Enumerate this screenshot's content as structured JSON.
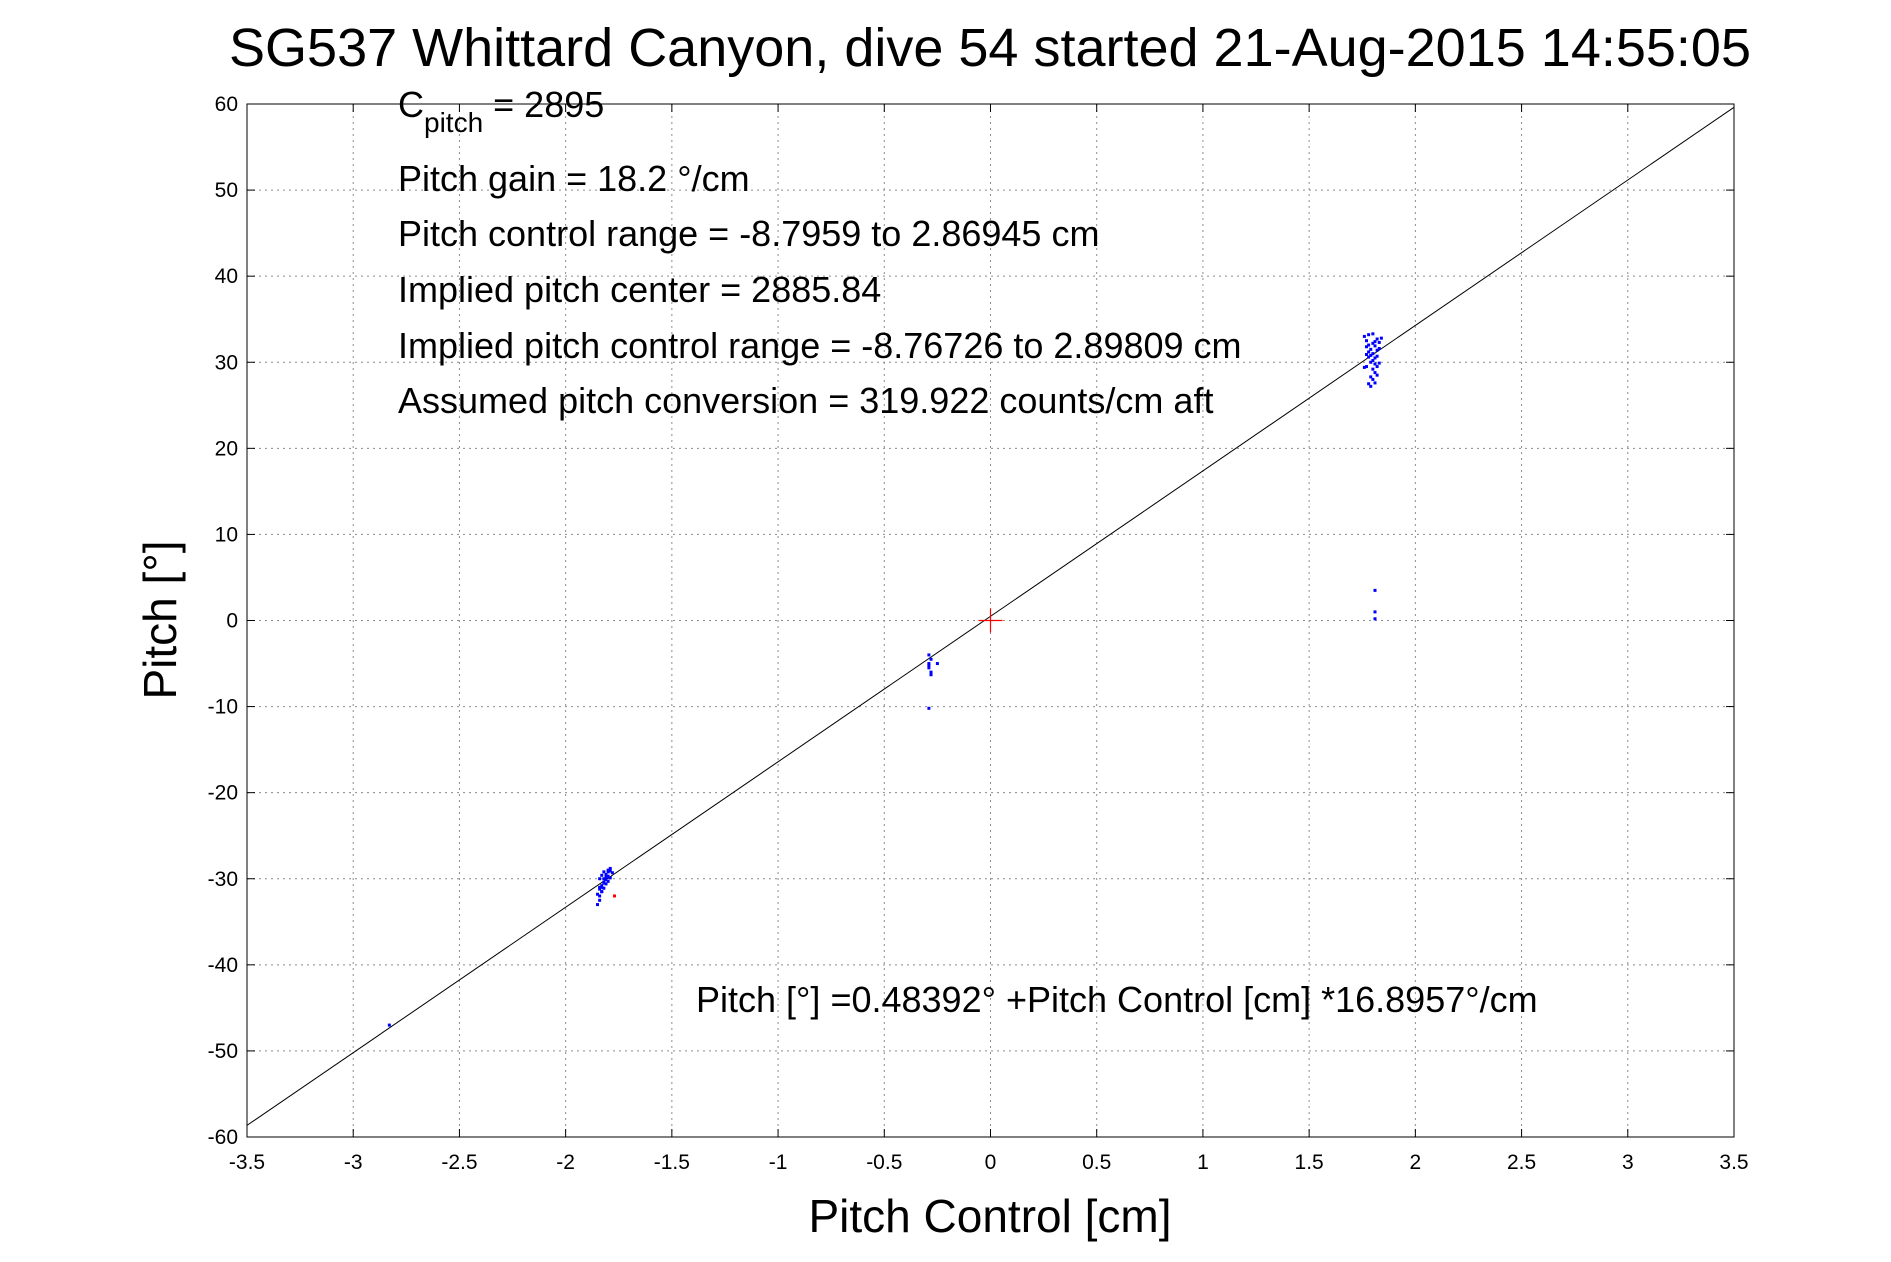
{
  "chart_data": {
    "type": "scatter",
    "title": "SG537 Whittard Canyon, dive 54 started 21-Aug-2015 14:55:05",
    "xlabel": "Pitch Control [cm]",
    "ylabel": "Pitch [°]",
    "xlim": [
      -3.5,
      3.5
    ],
    "ylim": [
      -60,
      60
    ],
    "xticks": [
      -3.5,
      -3,
      -2.5,
      -2,
      -1.5,
      -1,
      -0.5,
      0,
      0.5,
      1,
      1.5,
      2,
      2.5,
      3,
      3.5
    ],
    "xtick_labels": [
      "-3.5",
      "-3",
      "-2.5",
      "-2",
      "-1.5",
      "-1",
      "-0.5",
      "0",
      "0.5",
      "1",
      "1.5",
      "2",
      "2.5",
      "3",
      "3.5"
    ],
    "yticks": [
      -60,
      -50,
      -40,
      -30,
      -20,
      -10,
      0,
      10,
      20,
      30,
      40,
      50,
      60
    ],
    "ytick_labels": [
      "-60",
      "-50",
      "-40",
      "-30",
      "-20",
      "-10",
      "0",
      "10",
      "20",
      "30",
      "40",
      "50",
      "60"
    ],
    "grid": true,
    "colors": {
      "data": "#0000ff",
      "fit": "#000000",
      "center": "#ff0000",
      "outlier": "#ff0000"
    },
    "series": [
      {
        "marker": "dot",
        "color": "#0000ff",
        "x": [
          -2.83,
          -1.85,
          -1.84,
          -1.84,
          -1.83,
          -1.83,
          -1.82,
          -1.82,
          -1.81,
          -1.81,
          -1.8,
          -1.8,
          -1.79,
          -1.79,
          -1.84,
          -1.83,
          -1.82,
          -1.81,
          -1.8,
          -1.84,
          -1.83,
          -1.82,
          -1.85,
          -1.84,
          -1.83,
          -1.82,
          -1.81,
          -1.78,
          -1.79,
          -1.8,
          -0.29,
          -0.29,
          -0.29,
          -0.28,
          -0.28,
          -0.29,
          -0.28,
          -0.25,
          -0.29,
          1.76,
          1.77,
          1.78,
          1.79,
          1.8,
          1.81,
          1.82,
          1.83,
          1.84,
          1.77,
          1.78,
          1.79,
          1.8,
          1.81,
          1.82,
          1.83,
          1.78,
          1.79,
          1.8,
          1.81,
          1.82,
          1.83,
          1.77,
          1.78,
          1.8,
          1.81,
          1.82,
          1.79,
          1.8,
          1.81,
          1.82,
          1.76,
          1.77,
          1.81,
          1.8,
          1.78,
          1.79,
          1.81,
          1.81,
          1.81
        ],
        "y": [
          -47,
          -33,
          -32.5,
          -32,
          -31.5,
          -31,
          -30.5,
          -30,
          -29.8,
          -29.5,
          -29.2,
          -29,
          -28.8,
          -29.1,
          -31,
          -30.8,
          -30.4,
          -30.1,
          -29.7,
          -30,
          -29.6,
          -29.2,
          -31.8,
          -31.2,
          -31.5,
          -31.1,
          -30.6,
          -29.3,
          -29.9,
          -30.3,
          -4,
          -5,
          -5.5,
          -6,
          -4.5,
          -5.2,
          -6.3,
          -5,
          -10.2,
          33,
          32.5,
          32,
          31.5,
          31,
          30.5,
          32.7,
          32.3,
          32.8,
          31.8,
          31.2,
          30.8,
          30.2,
          29.8,
          29.5,
          31.6,
          33.2,
          30,
          29.2,
          28.8,
          28.5,
          29.9,
          29.5,
          30.6,
          28,
          27.6,
          31.4,
          27.2,
          32.2,
          31.9,
          30.7,
          29.4,
          30.9,
          32.4,
          33.3,
          27.5,
          28.3,
          3.5,
          1,
          0.2
        ]
      },
      {
        "marker": "dot",
        "color": "#ff0000",
        "x": [
          -1.77
        ],
        "y": [
          -32
        ]
      }
    ],
    "fit_line": {
      "intercept": 0.48392,
      "slope": 16.8957,
      "color": "#000000"
    },
    "center_marker": {
      "x": 0,
      "y": 0,
      "color": "#ff0000"
    },
    "annotations": {
      "cpitch_main": "C",
      "cpitch_sub": "pitch",
      "cpitch_value": " = 2895",
      "lines": [
        "Pitch gain = 18.2 °/cm",
        "Pitch control range = -8.7959 to 2.86945 cm",
        "Implied pitch center = 2885.84",
        "Implied pitch control range = -8.76726 to 2.89809 cm",
        "Assumed pitch conversion = 319.922 counts/cm aft"
      ],
      "equation": "Pitch [°] =0.48392° +Pitch Control [cm] *16.8957°/cm"
    }
  }
}
